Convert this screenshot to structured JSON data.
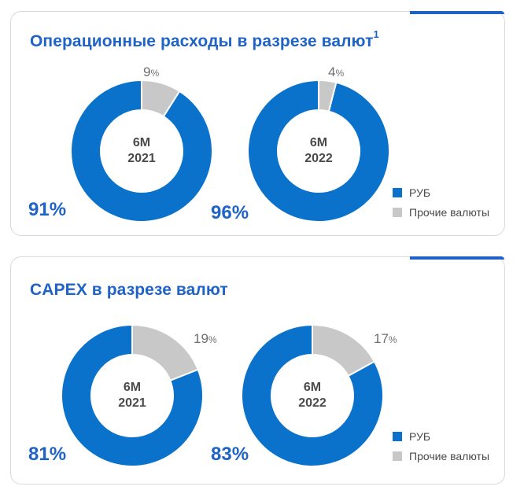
{
  "colors": {
    "rub": "#0b72cc",
    "other": "#c8c8c8",
    "title": "#1f63c6"
  },
  "legend": {
    "rub": "РУБ",
    "other": "Прочие валюты"
  },
  "chart_data": [
    {
      "type": "pie",
      "title": "Операционные расходы в разрезе валют",
      "title_sup": "1",
      "charts": [
        {
          "center_line1": "6М",
          "center_line2": "2021",
          "rub_label": "91%",
          "other_value": "9",
          "other_unit": "%",
          "values": [
            91,
            9
          ]
        },
        {
          "center_line1": "6М",
          "center_line2": "2022",
          "rub_label": "96%",
          "other_value": "4",
          "other_unit": "%",
          "values": [
            96,
            4
          ]
        }
      ]
    },
    {
      "type": "pie",
      "title": "CAPEX в разрезе валют",
      "title_sup": "",
      "charts": [
        {
          "center_line1": "6М",
          "center_line2": "2021",
          "rub_label": "81%",
          "other_value": "19",
          "other_unit": "%",
          "values": [
            81,
            19
          ]
        },
        {
          "center_line1": "6М",
          "center_line2": "2022",
          "rub_label": "83%",
          "other_value": "17",
          "other_unit": "%",
          "values": [
            83,
            17
          ]
        }
      ]
    }
  ]
}
